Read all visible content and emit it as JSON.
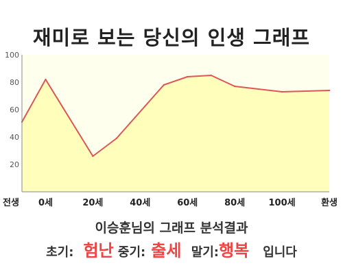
{
  "chart_data": {
    "type": "area",
    "title": "재미로 보는 당신의 인생 그래프",
    "x": [
      -10,
      0,
      20,
      30,
      50,
      60,
      70,
      80,
      100,
      120
    ],
    "y": [
      51,
      82,
      26,
      39,
      78,
      84,
      85,
      77,
      73,
      74
    ],
    "xlim": [
      -10,
      120
    ],
    "ylim": [
      0,
      100
    ],
    "yticks": [
      20,
      40,
      60,
      80,
      100
    ],
    "xtick_labels": [
      {
        "x": -10,
        "label": "전생"
      },
      {
        "x": 0,
        "label": "0세"
      },
      {
        "x": 20,
        "label": "20세"
      },
      {
        "x": 40,
        "label": "40세"
      },
      {
        "x": 60,
        "label": "60세"
      },
      {
        "x": 80,
        "label": "80세"
      },
      {
        "x": 100,
        "label": "100세"
      },
      {
        "x": 120,
        "label": "환생"
      }
    ],
    "line_color": "#dd5555",
    "fill_color": "#ffffbb",
    "plot_background": "#ffffee",
    "grid": false
  },
  "summary": {
    "text": "이승훈님의 그래프 분석결과"
  },
  "result": {
    "early_label": "초기:",
    "early_value": "험난",
    "mid_label": "중기:",
    "mid_value": "출세",
    "late_label": "말기:",
    "late_value": "행복",
    "ending": "입니다"
  },
  "colors": {
    "highlight": "#ee4444"
  }
}
